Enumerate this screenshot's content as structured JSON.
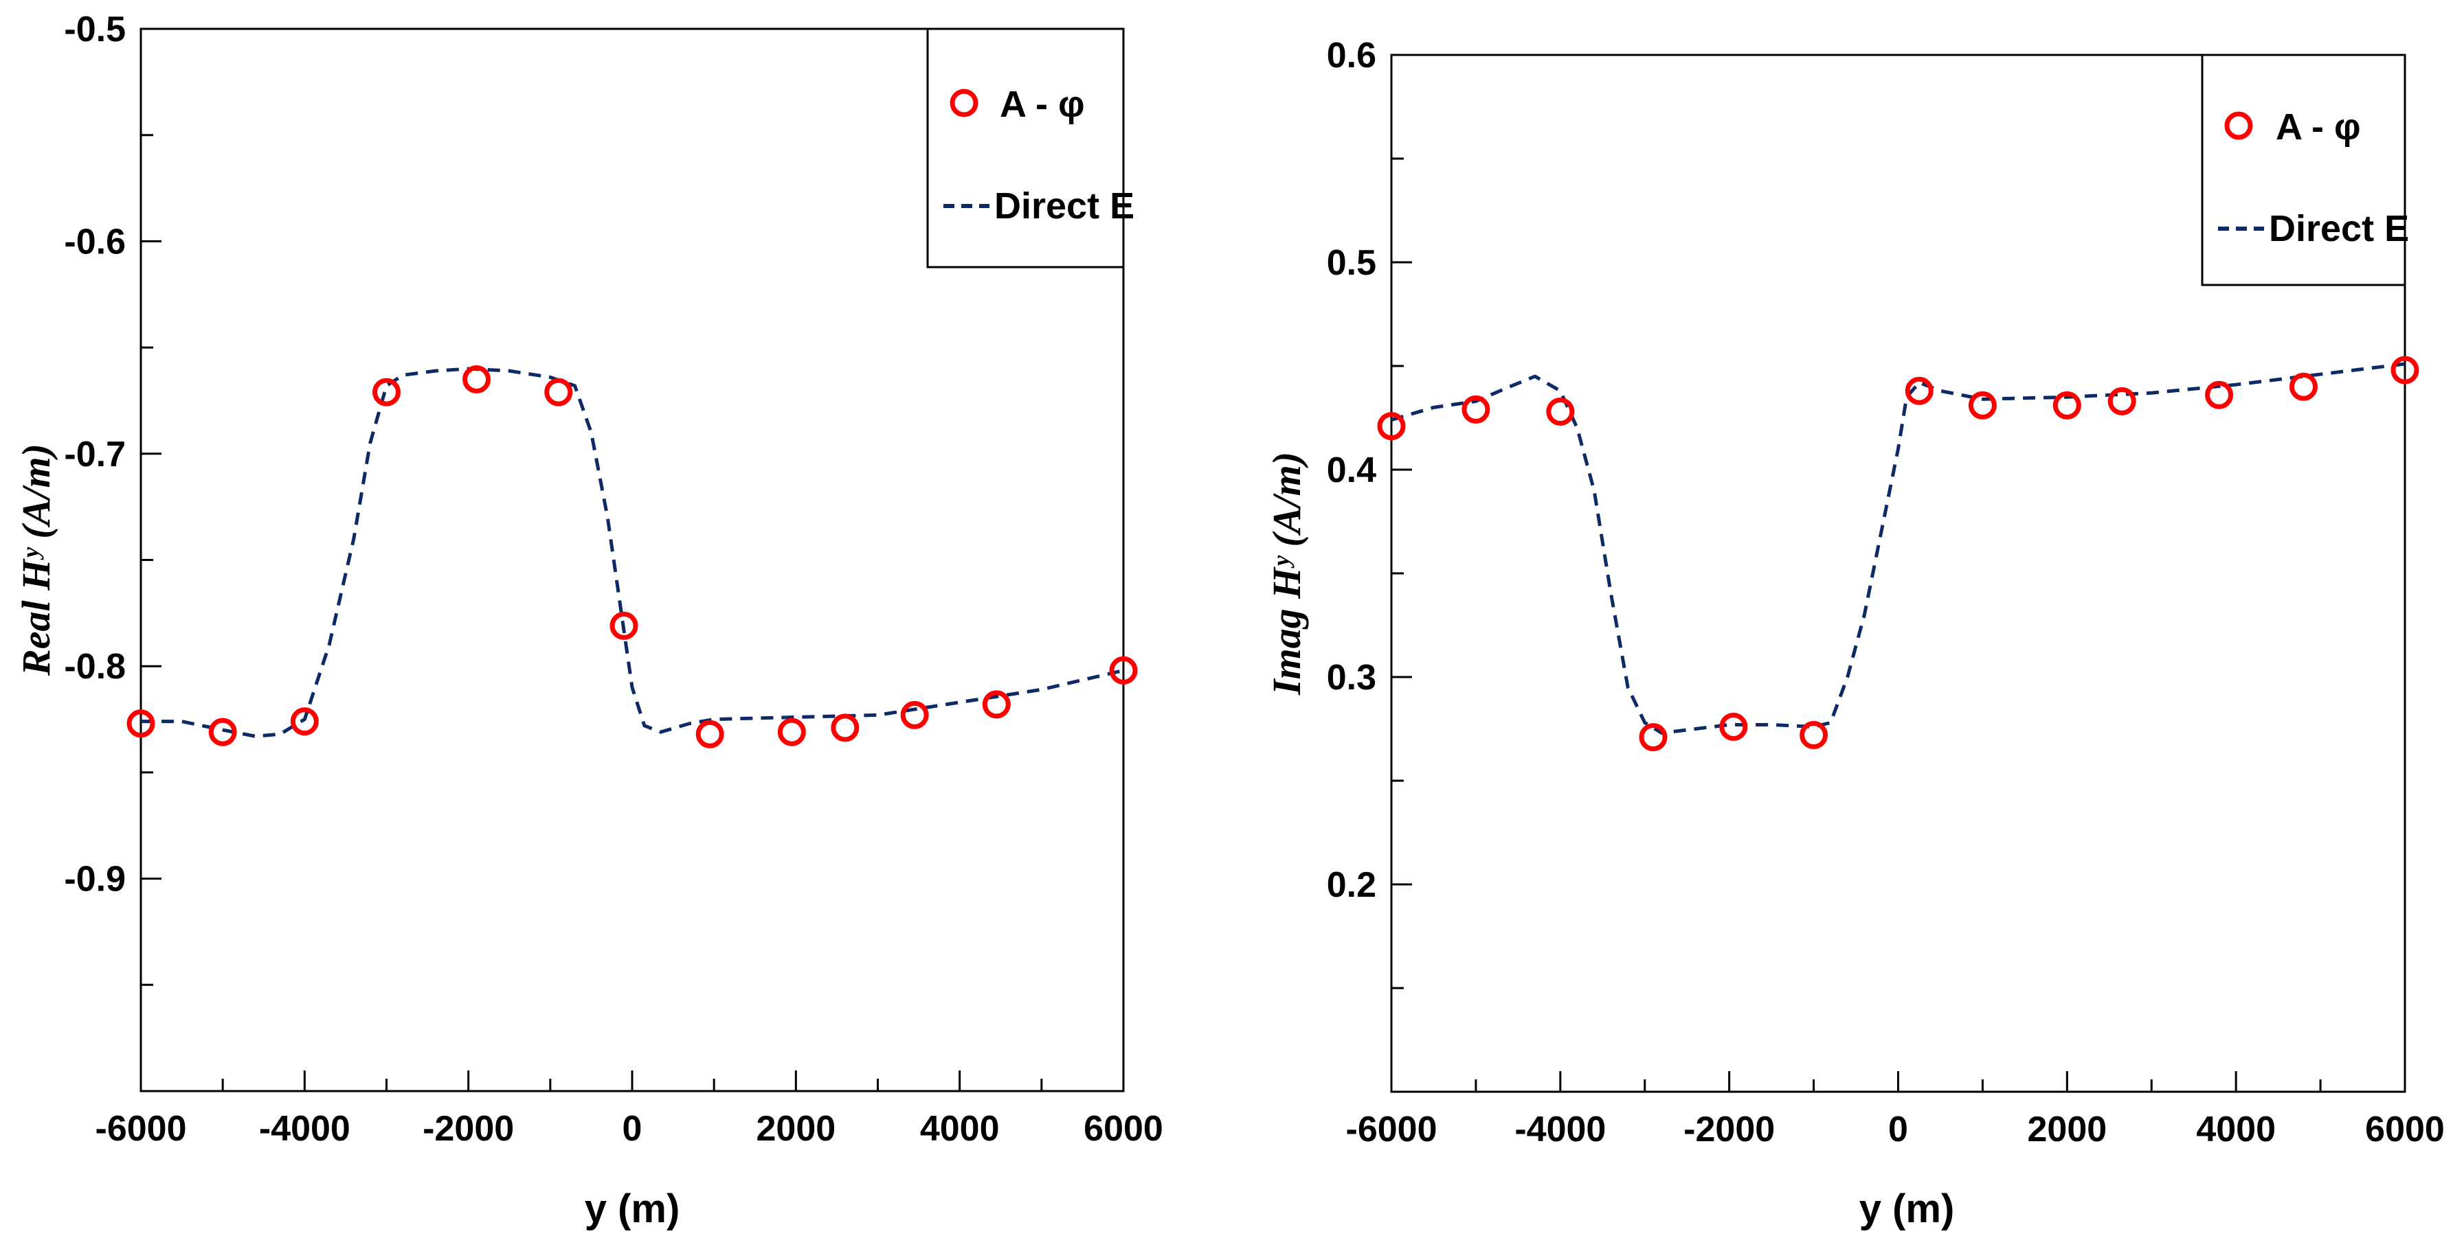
{
  "legend_labels": {
    "a_phi": "A - φ",
    "direct_e": "Direct E"
  },
  "colors": {
    "a_phi_marker": "#ff0000",
    "direct_e_line": "#0d2a66",
    "axes": "#000000"
  },
  "chart_data": [
    {
      "type": "line",
      "title": "",
      "xlabel": "y (m)",
      "ylabel": "Real Hʸ (A/m)",
      "xlim": [
        -6000,
        6000
      ],
      "ylim": [
        -1.0,
        -0.5
      ],
      "x_ticks": [
        "-6000",
        "-4000",
        "-2000",
        "0",
        "2000",
        "4000",
        "6000"
      ],
      "y_ticks": [
        "-0.5",
        "-0.6",
        "-0.7",
        "-0.8",
        "-0.9"
      ],
      "legend_position": "top-right",
      "grid": false,
      "series": [
        {
          "name": "A - φ",
          "style": "markers",
          "x": [
            -6000,
            -5000,
            -4000,
            -3000,
            -1900,
            -900,
            -100,
            950,
            1950,
            2600,
            3450,
            4450,
            6000
          ],
          "y": [
            -0.827,
            -0.831,
            -0.826,
            -0.671,
            -0.665,
            -0.671,
            -0.781,
            -0.832,
            -0.831,
            -0.829,
            -0.823,
            -0.818,
            -0.802
          ]
        },
        {
          "name": "Direct E",
          "style": "dashed",
          "x": [
            -6000,
            -5500,
            -5000,
            -4600,
            -4300,
            -4000,
            -3700,
            -3400,
            -3200,
            -3000,
            -2800,
            -2400,
            -2000,
            -1500,
            -1000,
            -700,
            -500,
            -300,
            -150,
            0,
            150,
            350,
            700,
            1000,
            2000,
            3000,
            4000,
            5000,
            6000
          ],
          "y": [
            -0.826,
            -0.826,
            -0.83,
            -0.833,
            -0.832,
            -0.825,
            -0.79,
            -0.74,
            -0.695,
            -0.668,
            -0.663,
            -0.661,
            -0.66,
            -0.661,
            -0.664,
            -0.668,
            -0.69,
            -0.73,
            -0.77,
            -0.81,
            -0.828,
            -0.831,
            -0.827,
            -0.825,
            -0.824,
            -0.823,
            -0.817,
            -0.811,
            -0.802
          ]
        }
      ]
    },
    {
      "type": "line",
      "title": "",
      "xlabel": "y (m)",
      "ylabel": "Imag Hʸ (A/m)",
      "xlim": [
        -6000,
        6000
      ],
      "ylim": [
        0.1,
        0.6
      ],
      "x_ticks": [
        "-6000",
        "-4000",
        "-2000",
        "0",
        "2000",
        "4000",
        "6000"
      ],
      "y_ticks": [
        "0.6",
        "0.5",
        "0.4",
        "0.3",
        "0.2"
      ],
      "legend_position": "top-right",
      "grid": false,
      "series": [
        {
          "name": "A - φ",
          "style": "markers",
          "x": [
            -6000,
            -5000,
            -4000,
            -2900,
            -1950,
            -1000,
            250,
            1000,
            2000,
            2650,
            3800,
            4800,
            6000
          ],
          "y": [
            0.421,
            0.429,
            0.428,
            0.271,
            0.276,
            0.272,
            0.438,
            0.431,
            0.431,
            0.433,
            0.436,
            0.44,
            0.448
          ]
        },
        {
          "name": "Direct E",
          "style": "dashed",
          "x": [
            -6000,
            -5500,
            -5000,
            -4600,
            -4300,
            -4000,
            -3800,
            -3600,
            -3400,
            -3200,
            -3000,
            -2800,
            -2400,
            -2000,
            -1500,
            -1000,
            -800,
            -600,
            -400,
            -200,
            0,
            100,
            250,
            500,
            1000,
            2000,
            3000,
            4000,
            5000,
            6000
          ],
          "y": [
            0.424,
            0.43,
            0.433,
            0.44,
            0.445,
            0.438,
            0.42,
            0.39,
            0.34,
            0.295,
            0.278,
            0.273,
            0.275,
            0.277,
            0.277,
            0.276,
            0.278,
            0.3,
            0.33,
            0.37,
            0.41,
            0.435,
            0.442,
            0.438,
            0.434,
            0.435,
            0.437,
            0.441,
            0.446,
            0.451
          ]
        }
      ]
    }
  ]
}
